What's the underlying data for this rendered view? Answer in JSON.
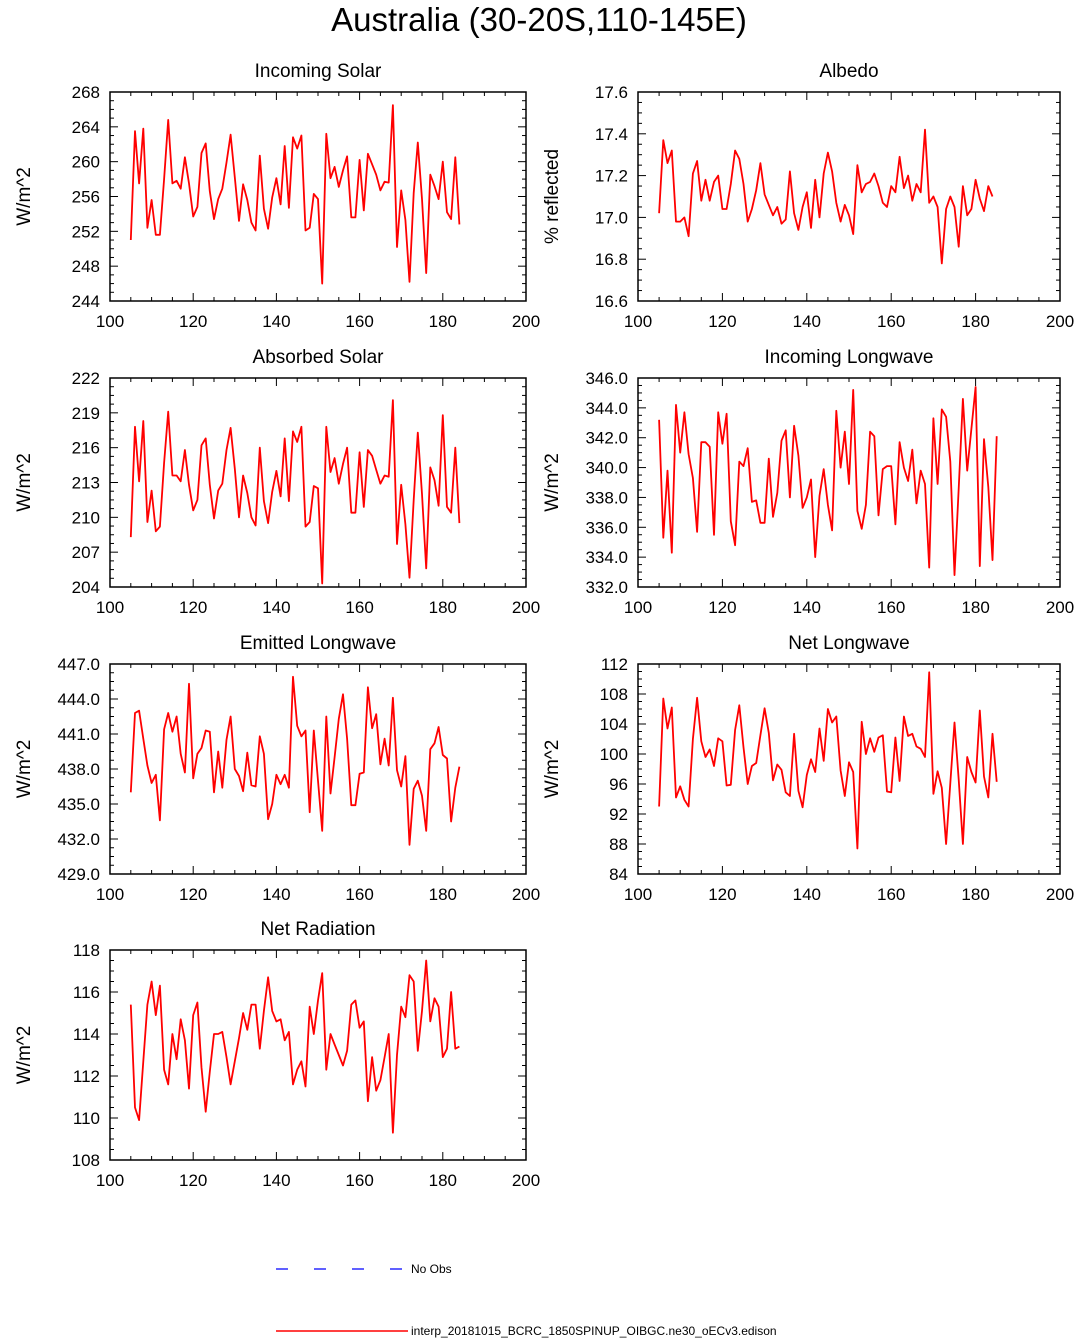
{
  "title": "Australia (30-20S,110-145E)",
  "colors": {
    "model": "#ff0000",
    "obs": "#0000ff"
  },
  "legend": {
    "obs_label": "No Obs",
    "model_label": "interp_20181015_BCRC_1850SPINUP_OIBGC.ne30_oECv3.edison"
  },
  "chart_data": [
    {
      "type": "line",
      "title": "Incoming Solar",
      "ylabel": "W/m^2",
      "xlim": [
        100,
        200
      ],
      "xticks": [
        100,
        120,
        140,
        160,
        180,
        200
      ],
      "ylim": [
        244,
        268
      ],
      "yticks": [
        244,
        248,
        252,
        256,
        260,
        264,
        268
      ],
      "ydecimals": 0,
      "x_start": 105,
      "x_step": 1,
      "series": [
        {
          "values": [
            251.0,
            263.5,
            257.5,
            263.8,
            252.4,
            255.6,
            251.6,
            251.6,
            258.0,
            264.8,
            257.5,
            257.8,
            256.9,
            260.5,
            257.5,
            253.7,
            254.8,
            261.0,
            262.1,
            256.6,
            253.4,
            255.7,
            256.9,
            259.9,
            263.1,
            258.2,
            253.2,
            257.4,
            255.6,
            253.0,
            252.1,
            260.7,
            254.6,
            252.3,
            255.9,
            258.1,
            255.1,
            261.8,
            254.7,
            262.8,
            261.5,
            263.0,
            252.1,
            252.4,
            256.3,
            255.7,
            246.0,
            263.2,
            258.1,
            259.4,
            257.1,
            259.0,
            260.6,
            253.6,
            253.6,
            260.2,
            254.4,
            260.9,
            259.7,
            258.5,
            256.7,
            257.7,
            257.6,
            266.5,
            250.2,
            256.7,
            253.3,
            246.2,
            256.4,
            262.2,
            255.7,
            247.2,
            258.5,
            257.2,
            255.7,
            260.0,
            254.2,
            253.4,
            260.5,
            252.8
          ]
        }
      ]
    },
    {
      "type": "line",
      "title": "Albedo",
      "ylabel": "% reflected",
      "xlim": [
        100,
        200
      ],
      "xticks": [
        100,
        120,
        140,
        160,
        180,
        200
      ],
      "ylim": [
        16.6,
        17.6
      ],
      "yticks": [
        16.6,
        16.8,
        17.0,
        17.2,
        17.4,
        17.6
      ],
      "ydecimals": 1,
      "x_start": 105,
      "x_step": 1,
      "series": [
        {
          "values": [
            17.02,
            17.37,
            17.26,
            17.32,
            16.98,
            16.98,
            17.0,
            16.91,
            17.21,
            17.27,
            17.08,
            17.18,
            17.08,
            17.17,
            17.2,
            17.04,
            17.04,
            17.16,
            17.32,
            17.28,
            17.16,
            16.98,
            17.04,
            17.13,
            17.26,
            17.11,
            17.06,
            17.01,
            17.05,
            16.97,
            16.99,
            17.22,
            17.02,
            16.94,
            17.05,
            17.12,
            16.95,
            17.18,
            17.0,
            17.21,
            17.31,
            17.22,
            17.07,
            16.98,
            17.06,
            17.01,
            16.92,
            17.25,
            17.12,
            17.16,
            17.17,
            17.21,
            17.15,
            17.07,
            17.05,
            17.15,
            17.12,
            17.29,
            17.14,
            17.2,
            17.08,
            17.16,
            17.12,
            17.42,
            17.07,
            17.1,
            17.05,
            16.78,
            17.04,
            17.1,
            17.05,
            16.86,
            17.15,
            17.01,
            17.04,
            17.18,
            17.09,
            17.03,
            17.15,
            17.1
          ]
        }
      ]
    },
    {
      "type": "line",
      "title": "Absorbed Solar",
      "ylabel": "W/m^2",
      "xlim": [
        100,
        200
      ],
      "xticks": [
        100,
        120,
        140,
        160,
        180,
        200
      ],
      "ylim": [
        204,
        222
      ],
      "yticks": [
        204,
        207,
        210,
        213,
        216,
        219,
        222
      ],
      "ydecimals": 0,
      "x_start": 105,
      "x_step": 1,
      "series": [
        {
          "values": [
            208.3,
            217.8,
            213.1,
            218.3,
            209.6,
            212.3,
            208.8,
            209.2,
            214.7,
            219.1,
            213.6,
            213.6,
            213.1,
            215.8,
            212.8,
            210.6,
            211.5,
            216.2,
            216.8,
            212.8,
            209.9,
            212.3,
            212.9,
            215.8,
            217.7,
            214.2,
            210.0,
            213.6,
            212.1,
            210.0,
            209.3,
            216.0,
            211.4,
            209.5,
            212.2,
            214.0,
            211.8,
            216.8,
            211.4,
            217.4,
            216.5,
            217.8,
            209.2,
            209.6,
            212.7,
            212.5,
            204.3,
            217.8,
            213.9,
            215.1,
            212.9,
            214.6,
            216.0,
            210.4,
            210.4,
            215.6,
            210.9,
            215.8,
            215.3,
            214.1,
            212.9,
            213.6,
            213.5,
            220.1,
            207.7,
            212.8,
            209.4,
            204.8,
            211.5,
            217.3,
            212.0,
            205.6,
            214.3,
            213.2,
            211.0,
            218.8,
            210.9,
            210.4,
            216.0,
            209.5
          ]
        }
      ]
    },
    {
      "type": "line",
      "title": "Incoming Longwave",
      "ylabel": "W/m^2",
      "xlim": [
        100,
        200
      ],
      "xticks": [
        100,
        120,
        140,
        160,
        180,
        200
      ],
      "ylim": [
        332.0,
        346.0
      ],
      "yticks": [
        332.0,
        334.0,
        336.0,
        338.0,
        340.0,
        342.0,
        344.0,
        346.0
      ],
      "ydecimals": 1,
      "x_start": 105,
      "x_step": 1,
      "series": [
        {
          "values": [
            343.2,
            335.3,
            339.8,
            334.3,
            344.2,
            341.0,
            343.7,
            340.9,
            339.3,
            335.7,
            341.7,
            341.7,
            341.4,
            335.5,
            343.7,
            341.6,
            343.6,
            336.4,
            334.8,
            340.4,
            340.1,
            341.3,
            337.7,
            337.8,
            336.3,
            336.3,
            340.6,
            336.7,
            338.3,
            341.8,
            342.5,
            338.0,
            342.8,
            340.8,
            337.3,
            338.0,
            339.2,
            334.0,
            338.1,
            339.9,
            337.5,
            335.8,
            343.8,
            340.0,
            342.4,
            338.9,
            345.2,
            337.1,
            335.9,
            337.5,
            342.4,
            342.1,
            336.8,
            339.9,
            340.1,
            340.1,
            336.2,
            341.7,
            340.0,
            339.1,
            341.2,
            337.6,
            339.8,
            338.9,
            333.3,
            343.3,
            338.9,
            343.9,
            343.4,
            340.4,
            332.8,
            338.6,
            344.6,
            339.8,
            342.6,
            345.4,
            333.4,
            341.9,
            338.7,
            333.8,
            342.1
          ]
        }
      ]
    },
    {
      "type": "line",
      "title": "Emitted Longwave",
      "ylabel": "W/m^2",
      "xlim": [
        100,
        200
      ],
      "xticks": [
        100,
        120,
        140,
        160,
        180,
        200
      ],
      "ylim": [
        429.0,
        447.0
      ],
      "yticks": [
        429.0,
        432.0,
        435.0,
        438.0,
        441.0,
        444.0,
        447.0
      ],
      "ydecimals": 1,
      "x_start": 105,
      "x_step": 1,
      "series": [
        {
          "values": [
            436.0,
            442.8,
            443.0,
            440.6,
            438.3,
            436.8,
            437.5,
            433.6,
            441.4,
            442.8,
            441.2,
            442.5,
            439.3,
            437.7,
            445.3,
            437.2,
            439.3,
            439.8,
            441.3,
            441.2,
            436.0,
            439.5,
            436.4,
            440.5,
            442.5,
            438.0,
            437.4,
            436.1,
            439.4,
            436.6,
            436.5,
            440.8,
            439.3,
            433.7,
            435.0,
            437.5,
            436.7,
            437.5,
            436.4,
            445.9,
            441.7,
            440.8,
            441.3,
            434.3,
            441.3,
            437.0,
            432.7,
            442.5,
            435.9,
            439.0,
            442.3,
            444.4,
            440.6,
            434.9,
            434.9,
            437.6,
            437.7,
            445.0,
            441.5,
            442.7,
            438.4,
            440.6,
            438.3,
            444.1,
            437.9,
            436.5,
            439.1,
            431.5,
            436.3,
            437.0,
            435.7,
            432.7,
            439.7,
            440.2,
            441.6,
            439.2,
            438.9,
            433.5,
            436.4,
            438.2
          ]
        }
      ]
    },
    {
      "type": "line",
      "title": "Net Longwave",
      "ylabel": "W/m^2",
      "xlim": [
        100,
        200
      ],
      "xticks": [
        100,
        120,
        140,
        160,
        180,
        200
      ],
      "ylim": [
        84,
        112
      ],
      "yticks": [
        84,
        88,
        92,
        96,
        100,
        104,
        108,
        112
      ],
      "ydecimals": 0,
      "x_start": 105,
      "x_step": 1,
      "series": [
        {
          "values": [
            93.0,
            107.4,
            103.4,
            106.2,
            94.2,
            95.7,
            93.9,
            93.0,
            102.0,
            107.5,
            101.7,
            99.6,
            100.6,
            98.4,
            102.1,
            101.7,
            95.8,
            95.9,
            103.2,
            106.5,
            100.9,
            96.0,
            98.4,
            98.8,
            102.5,
            106.1,
            102.8,
            96.5,
            98.6,
            97.9,
            94.9,
            94.4,
            102.7,
            95.1,
            92.9,
            97.2,
            99.3,
            97.6,
            103.4,
            99.1,
            106.0,
            104.2,
            105.0,
            97.8,
            94.4,
            98.9,
            97.6,
            87.4,
            104.3,
            100.0,
            102.1,
            100.3,
            102.2,
            102.5,
            95.0,
            94.9,
            102.2,
            96.4,
            105.0,
            102.4,
            102.7,
            101.0,
            100.7,
            99.6,
            110.9,
            94.7,
            97.7,
            95.5,
            88.0,
            96.1,
            104.2,
            96.6,
            88.0,
            99.6,
            97.6,
            96.2,
            105.8,
            97.0,
            94.2,
            102.7,
            96.3
          ]
        }
      ]
    },
    {
      "type": "line",
      "title": "Net Radiation",
      "ylabel": "W/m^2",
      "xlim": [
        100,
        200
      ],
      "xticks": [
        100,
        120,
        140,
        160,
        180,
        200
      ],
      "ylim": [
        108,
        118
      ],
      "yticks": [
        108,
        110,
        112,
        114,
        116,
        118
      ],
      "ydecimals": 0,
      "x_start": 105,
      "x_step": 1,
      "series": [
        {
          "values": [
            115.4,
            110.5,
            109.9,
            112.7,
            115.4,
            116.5,
            114.9,
            116.3,
            112.3,
            111.6,
            114.0,
            112.8,
            114.7,
            113.7,
            111.4,
            114.9,
            115.5,
            112.4,
            110.3,
            112.2,
            114.0,
            114.0,
            114.1,
            112.9,
            111.6,
            112.7,
            113.8,
            115.0,
            114.2,
            115.4,
            115.4,
            113.3,
            115.1,
            116.7,
            115.1,
            114.6,
            114.7,
            113.7,
            114.1,
            111.6,
            112.3,
            112.7,
            111.5,
            115.3,
            114.0,
            115.6,
            116.9,
            112.3,
            114.0,
            113.5,
            113.0,
            112.5,
            113.2,
            115.4,
            115.6,
            114.3,
            114.6,
            110.8,
            112.9,
            111.3,
            111.8,
            112.9,
            114.0,
            109.3,
            113.0,
            115.3,
            114.8,
            116.8,
            116.5,
            113.2,
            115.1,
            117.5,
            114.6,
            115.7,
            115.3,
            112.9,
            113.3,
            116.0,
            113.3,
            113.4
          ]
        }
      ]
    }
  ]
}
